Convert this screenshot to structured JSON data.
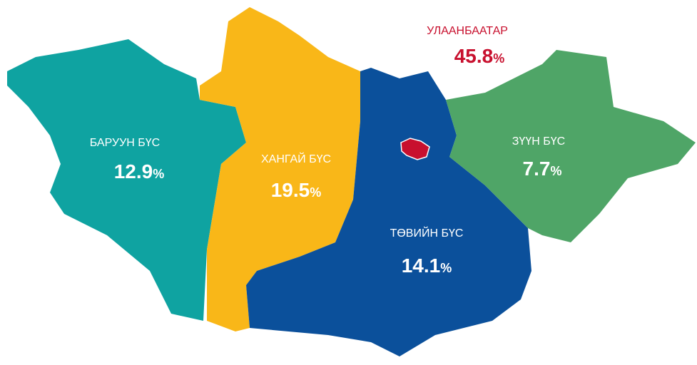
{
  "regions": [
    {
      "name": "БАРУУН БҮС",
      "value": 12.9,
      "unit": "%"
    },
    {
      "name": "ХАНГАЙ БҮС",
      "value": 19.5,
      "unit": "%"
    },
    {
      "name": "ТӨВИЙН БҮС",
      "value": 14.1,
      "unit": "%"
    },
    {
      "name": "ЗҮҮН БҮС",
      "value": 7.7,
      "unit": "%"
    },
    {
      "name": "УЛААНБААТАР",
      "value": 45.8,
      "unit": "%"
    }
  ]
}
